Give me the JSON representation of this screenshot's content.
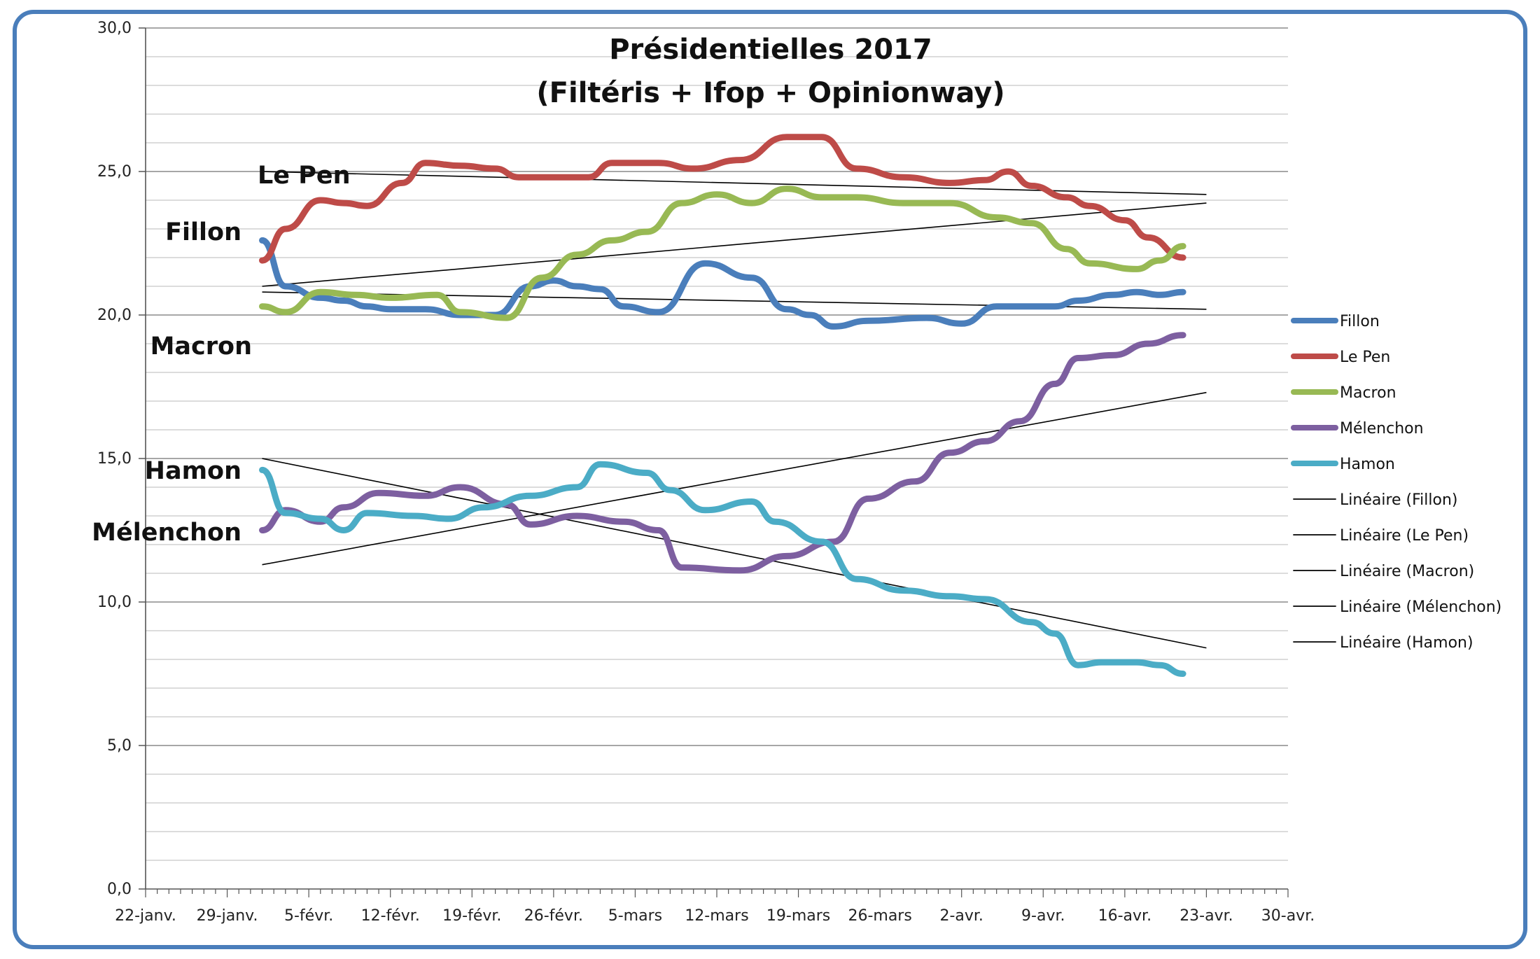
{
  "chart_data": {
    "type": "line",
    "title": "Présidentielles 2017",
    "subtitle": "(Filtéris + Ifop + Opinionway)",
    "xlabel": "",
    "ylabel": "",
    "ylim": [
      0,
      30
    ],
    "y_ticks": [
      "0,0",
      "5,0",
      "10,0",
      "15,0",
      "20,0",
      "25,0",
      "30,0"
    ],
    "x_range": [
      "2017-01-22",
      "2017-04-30"
    ],
    "x_ticks": [
      "22-janv.",
      "29-janv.",
      "5-févr.",
      "12-févr.",
      "19-févr.",
      "26-févr.",
      "5-mars",
      "12-mars",
      "19-mars",
      "26-mars",
      "2-avr.",
      "9-avr.",
      "16-avr.",
      "23-avr.",
      "30-avr."
    ],
    "grid": "horizontal",
    "legend_position": "right",
    "series": [
      {
        "name": "Fillon",
        "color": "#4a7ebb",
        "points": [
          [
            "2017-02-01",
            22.6
          ],
          [
            "2017-02-03",
            21.0
          ],
          [
            "2017-02-06",
            20.6
          ],
          [
            "2017-02-08",
            20.5
          ],
          [
            "2017-02-10",
            20.3
          ],
          [
            "2017-02-12",
            20.2
          ],
          [
            "2017-02-15",
            20.2
          ],
          [
            "2017-02-18",
            20.0
          ],
          [
            "2017-02-21",
            20.0
          ],
          [
            "2017-02-24",
            21.0
          ],
          [
            "2017-02-26",
            21.2
          ],
          [
            "2017-02-28",
            21.0
          ],
          [
            "2017-03-02",
            20.9
          ],
          [
            "2017-03-04",
            20.3
          ],
          [
            "2017-03-07",
            20.1
          ],
          [
            "2017-03-11",
            21.8
          ],
          [
            "2017-03-15",
            21.3
          ],
          [
            "2017-03-18",
            20.2
          ],
          [
            "2017-03-20",
            20.0
          ],
          [
            "2017-03-22",
            19.6
          ],
          [
            "2017-03-25",
            19.8
          ],
          [
            "2017-03-30",
            19.9
          ],
          [
            "2017-04-02",
            19.7
          ],
          [
            "2017-04-05",
            20.3
          ],
          [
            "2017-04-10",
            20.3
          ],
          [
            "2017-04-12",
            20.5
          ],
          [
            "2017-04-15",
            20.7
          ],
          [
            "2017-04-17",
            20.8
          ],
          [
            "2017-04-19",
            20.7
          ],
          [
            "2017-04-21",
            20.8
          ]
        ]
      },
      {
        "name": "Le Pen",
        "color": "#be4b48",
        "points": [
          [
            "2017-02-01",
            21.9
          ],
          [
            "2017-02-03",
            23.0
          ],
          [
            "2017-02-06",
            24.0
          ],
          [
            "2017-02-08",
            23.9
          ],
          [
            "2017-02-10",
            23.8
          ],
          [
            "2017-02-13",
            24.6
          ],
          [
            "2017-02-15",
            25.3
          ],
          [
            "2017-02-18",
            25.2
          ],
          [
            "2017-02-21",
            25.1
          ],
          [
            "2017-02-23",
            24.8
          ],
          [
            "2017-02-26",
            24.8
          ],
          [
            "2017-03-01",
            24.8
          ],
          [
            "2017-03-03",
            25.3
          ],
          [
            "2017-03-07",
            25.3
          ],
          [
            "2017-03-10",
            25.1
          ],
          [
            "2017-03-14",
            25.4
          ],
          [
            "2017-03-18",
            26.2
          ],
          [
            "2017-03-21",
            26.2
          ],
          [
            "2017-03-24",
            25.1
          ],
          [
            "2017-03-28",
            24.8
          ],
          [
            "2017-04-01",
            24.6
          ],
          [
            "2017-04-04",
            24.7
          ],
          [
            "2017-04-06",
            25.0
          ],
          [
            "2017-04-08",
            24.5
          ],
          [
            "2017-04-11",
            24.1
          ],
          [
            "2017-04-13",
            23.8
          ],
          [
            "2017-04-16",
            23.3
          ],
          [
            "2017-04-18",
            22.7
          ],
          [
            "2017-04-21",
            22.0
          ]
        ]
      },
      {
        "name": "Macron",
        "color": "#98b954",
        "points": [
          [
            "2017-02-01",
            20.3
          ],
          [
            "2017-02-03",
            20.1
          ],
          [
            "2017-02-06",
            20.8
          ],
          [
            "2017-02-09",
            20.7
          ],
          [
            "2017-02-12",
            20.6
          ],
          [
            "2017-02-16",
            20.7
          ],
          [
            "2017-02-18",
            20.1
          ],
          [
            "2017-02-22",
            19.9
          ],
          [
            "2017-02-25",
            21.3
          ],
          [
            "2017-02-28",
            22.1
          ],
          [
            "2017-03-03",
            22.6
          ],
          [
            "2017-03-06",
            22.9
          ],
          [
            "2017-03-09",
            23.9
          ],
          [
            "2017-03-12",
            24.2
          ],
          [
            "2017-03-15",
            23.9
          ],
          [
            "2017-03-18",
            24.4
          ],
          [
            "2017-03-21",
            24.1
          ],
          [
            "2017-03-24",
            24.1
          ],
          [
            "2017-03-28",
            23.9
          ],
          [
            "2017-04-01",
            23.9
          ],
          [
            "2017-04-05",
            23.4
          ],
          [
            "2017-04-08",
            23.2
          ],
          [
            "2017-04-11",
            22.3
          ],
          [
            "2017-04-13",
            21.8
          ],
          [
            "2017-04-17",
            21.6
          ],
          [
            "2017-04-19",
            21.9
          ],
          [
            "2017-04-21",
            22.4
          ]
        ]
      },
      {
        "name": "Mélenchon",
        "color": "#7d5fa0",
        "points": [
          [
            "2017-02-01",
            12.5
          ],
          [
            "2017-02-03",
            13.2
          ],
          [
            "2017-02-06",
            12.8
          ],
          [
            "2017-02-08",
            13.3
          ],
          [
            "2017-02-11",
            13.8
          ],
          [
            "2017-02-15",
            13.7
          ],
          [
            "2017-02-18",
            14.0
          ],
          [
            "2017-02-22",
            13.4
          ],
          [
            "2017-02-24",
            12.7
          ],
          [
            "2017-02-28",
            13.0
          ],
          [
            "2017-03-04",
            12.8
          ],
          [
            "2017-03-07",
            12.5
          ],
          [
            "2017-03-09",
            11.2
          ],
          [
            "2017-03-14",
            11.1
          ],
          [
            "2017-03-18",
            11.6
          ],
          [
            "2017-03-22",
            12.1
          ],
          [
            "2017-03-25",
            13.6
          ],
          [
            "2017-03-29",
            14.2
          ],
          [
            "2017-04-01",
            15.2
          ],
          [
            "2017-04-04",
            15.6
          ],
          [
            "2017-04-07",
            16.3
          ],
          [
            "2017-04-10",
            17.6
          ],
          [
            "2017-04-12",
            18.5
          ],
          [
            "2017-04-15",
            18.6
          ],
          [
            "2017-04-18",
            19.0
          ],
          [
            "2017-04-21",
            19.3
          ]
        ]
      },
      {
        "name": "Hamon",
        "color": "#4bacc6",
        "points": [
          [
            "2017-02-01",
            14.6
          ],
          [
            "2017-02-03",
            13.1
          ],
          [
            "2017-02-06",
            12.9
          ],
          [
            "2017-02-08",
            12.5
          ],
          [
            "2017-02-10",
            13.1
          ],
          [
            "2017-02-14",
            13.0
          ],
          [
            "2017-02-17",
            12.9
          ],
          [
            "2017-02-20",
            13.3
          ],
          [
            "2017-02-24",
            13.7
          ],
          [
            "2017-02-28",
            14.0
          ],
          [
            "2017-03-02",
            14.8
          ],
          [
            "2017-03-06",
            14.5
          ],
          [
            "2017-03-08",
            13.9
          ],
          [
            "2017-03-11",
            13.2
          ],
          [
            "2017-03-15",
            13.5
          ],
          [
            "2017-03-17",
            12.8
          ],
          [
            "2017-03-21",
            12.1
          ],
          [
            "2017-03-24",
            10.8
          ],
          [
            "2017-03-28",
            10.4
          ],
          [
            "2017-04-01",
            10.2
          ],
          [
            "2017-04-04",
            10.1
          ],
          [
            "2017-04-08",
            9.3
          ],
          [
            "2017-04-10",
            8.9
          ],
          [
            "2017-04-12",
            7.8
          ],
          [
            "2017-04-14",
            7.9
          ],
          [
            "2017-04-17",
            7.9
          ],
          [
            "2017-04-19",
            7.8
          ],
          [
            "2017-04-21",
            7.5
          ]
        ]
      }
    ],
    "trendlines": [
      {
        "name": "Linéaire (Fillon)",
        "color": "#000000",
        "start": [
          "2017-02-01",
          20.8
        ],
        "end": [
          "2017-04-23",
          20.2
        ]
      },
      {
        "name": "Linéaire (Le Pen)",
        "color": "#000000",
        "start": [
          "2017-02-01",
          25.0
        ],
        "end": [
          "2017-04-23",
          24.2
        ]
      },
      {
        "name": "Linéaire (Macron)",
        "color": "#000000",
        "start": [
          "2017-02-01",
          21.0
        ],
        "end": [
          "2017-04-23",
          23.9
        ]
      },
      {
        "name": "Linéaire (Mélenchon)",
        "color": "#000000",
        "start": [
          "2017-02-01",
          11.3
        ],
        "end": [
          "2017-04-23",
          17.3
        ]
      },
      {
        "name": "Linéaire (Hamon)",
        "color": "#000000",
        "start": [
          "2017-02-01",
          15.0
        ],
        "end": [
          "2017-04-23",
          8.4
        ]
      }
    ],
    "annotations": [
      {
        "text": "Le Pen",
        "series": "Le Pen"
      },
      {
        "text": "Fillon",
        "series": "Fillon"
      },
      {
        "text": "Macron",
        "series": "Macron"
      },
      {
        "text": "Hamon",
        "series": "Hamon"
      },
      {
        "text": "Mélenchon",
        "series": "Mélenchon"
      }
    ]
  }
}
